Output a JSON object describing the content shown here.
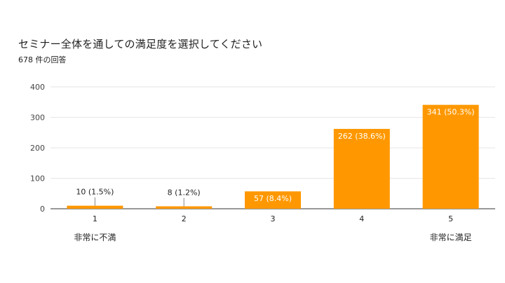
{
  "title": "セミナー全体を通しての満足度を選択してください",
  "subtitle": "678 件の回答",
  "colors": {
    "bar": "#FF9800",
    "grid": "#e6e6e6",
    "axis": "#333333"
  },
  "chart_data": {
    "type": "bar",
    "categories": [
      "1",
      "2",
      "3",
      "4",
      "5"
    ],
    "values": [
      10,
      8,
      57,
      262,
      341
    ],
    "data_labels": [
      "10 (1.5%)",
      "8 (1.2%)",
      "57 (8.4%)",
      "262 (38.6%)",
      "341 (50.3%)"
    ],
    "ylim": [
      0,
      400
    ],
    "yticks": [
      0,
      100,
      200,
      300,
      400
    ],
    "grid": true,
    "legend": "none",
    "scale_labels": {
      "low": "非常に不満",
      "high": "非常に満足"
    }
  }
}
